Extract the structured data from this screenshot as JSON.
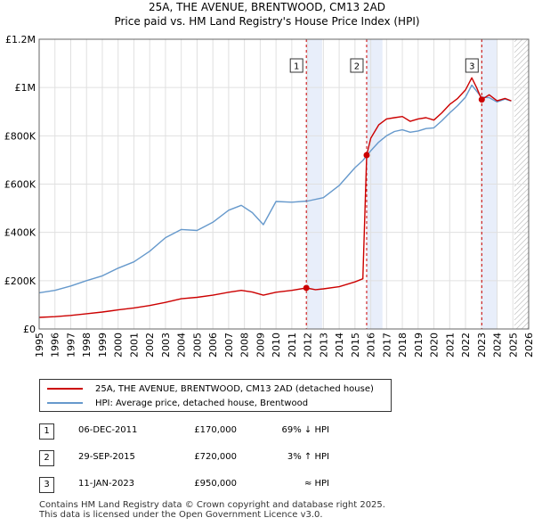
{
  "header": {
    "title": "25A, THE AVENUE, BRENTWOOD, CM13 2AD",
    "subtitle": "Price paid vs. HM Land Registry's House Price Index (HPI)"
  },
  "colors": {
    "red": "#cc0000",
    "blue": "#6699cc",
    "grid": "#e0e0e0",
    "shade": "#e8eefa",
    "dash": "#cc0000"
  },
  "chart_data": {
    "type": "line",
    "title": "Price paid vs. HM Land Registry's House Price Index (HPI)",
    "xlim": [
      1995,
      2026
    ],
    "ylim": [
      0,
      1200000
    ],
    "x_ticks": [
      "1995",
      "1996",
      "1997",
      "1998",
      "1999",
      "2000",
      "2001",
      "2002",
      "2003",
      "2004",
      "2005",
      "2006",
      "2007",
      "2008",
      "2009",
      "2010",
      "2011",
      "2012",
      "2013",
      "2014",
      "2015",
      "2016",
      "2017",
      "2018",
      "2019",
      "2020",
      "2021",
      "2022",
      "2023",
      "2024",
      "2025",
      "2026"
    ],
    "y_ticks": [
      {
        "value": 0,
        "label": "£0"
      },
      {
        "value": 200000,
        "label": "£200K"
      },
      {
        "value": 400000,
        "label": "£400K"
      },
      {
        "value": 600000,
        "label": "£600K"
      },
      {
        "value": 800000,
        "label": "£800K"
      },
      {
        "value": 1000000,
        "label": "£1M"
      },
      {
        "value": 1200000,
        "label": "£1.2M"
      }
    ],
    "future_shade_from": 2025.1,
    "series": [
      {
        "name": "25A, THE AVENUE, BRENTWOOD, CM13 2AD (detached house)",
        "color": "#cc0000",
        "x": [
          1995.0,
          1996.0,
          1997.0,
          1998.0,
          1999.0,
          2000.0,
          2001.0,
          2002.0,
          2003.0,
          2004.0,
          2005.0,
          2006.0,
          2007.0,
          2007.8,
          2008.5,
          2009.2,
          2010.0,
          2011.0,
          2011.92,
          2012.5,
          2013.0,
          2014.0,
          2015.0,
          2015.5,
          2015.74,
          2016.0,
          2016.5,
          2017.0,
          2017.5,
          2018.0,
          2018.5,
          2019.0,
          2019.5,
          2020.0,
          2020.5,
          2021.0,
          2021.5,
          2022.0,
          2022.4,
          2022.7,
          2023.03,
          2023.5,
          2024.0,
          2024.5,
          2024.9
        ],
        "values": [
          48000,
          51000,
          56000,
          63000,
          70000,
          79000,
          87000,
          97000,
          110000,
          125000,
          131000,
          140000,
          152000,
          160000,
          153000,
          140000,
          152000,
          160000,
          170000,
          163000,
          166000,
          175000,
          195000,
          208000,
          720000,
          790000,
          845000,
          870000,
          875000,
          880000,
          860000,
          870000,
          875000,
          865000,
          895000,
          930000,
          955000,
          990000,
          1040000,
          1000000,
          950000,
          970000,
          945000,
          955000,
          945000
        ]
      },
      {
        "name": "HPI: Average price, detached house, Brentwood",
        "color": "#6699cc",
        "x": [
          1995.0,
          1996.0,
          1997.0,
          1998.0,
          1999.0,
          2000.0,
          2001.0,
          2002.0,
          2003.0,
          2004.0,
          2005.0,
          2006.0,
          2007.0,
          2007.8,
          2008.5,
          2009.2,
          2010.0,
          2011.0,
          2012.0,
          2013.0,
          2014.0,
          2015.0,
          2015.5,
          2016.0,
          2016.5,
          2017.0,
          2017.5,
          2018.0,
          2018.5,
          2019.0,
          2019.5,
          2020.0,
          2020.5,
          2021.0,
          2021.5,
          2022.0,
          2022.4,
          2022.7,
          2023.0,
          2023.5,
          2024.0,
          2024.5,
          2024.9
        ],
        "values": [
          150000,
          160000,
          178000,
          200000,
          220000,
          252000,
          278000,
          322000,
          378000,
          412000,
          408000,
          442000,
          492000,
          512000,
          482000,
          432000,
          528000,
          525000,
          530000,
          544000,
          594000,
          668000,
          698000,
          738000,
          774000,
          800000,
          818000,
          825000,
          815000,
          820000,
          830000,
          833000,
          862000,
          895000,
          925000,
          960000,
          1010000,
          985000,
          960000,
          958000,
          940000,
          952000,
          944000
        ]
      }
    ],
    "markers": [
      {
        "label": "1",
        "x": 2011.92,
        "y": 170000
      },
      {
        "label": "2",
        "x": 2015.74,
        "y": 720000
      },
      {
        "label": "3",
        "x": 2023.03,
        "y": 950000
      }
    ],
    "legend_position": "bottom"
  },
  "legend": {
    "items": [
      {
        "label": "25A, THE AVENUE, BRENTWOOD, CM13 2AD (detached house)",
        "color": "#cc0000"
      },
      {
        "label": "HPI: Average price, detached house, Brentwood",
        "color": "#6699cc"
      }
    ]
  },
  "transactions": [
    {
      "num": "1",
      "date": "06-DEC-2011",
      "price": "£170,000",
      "hpi": "69% ↓ HPI"
    },
    {
      "num": "2",
      "date": "29-SEP-2015",
      "price": "£720,000",
      "hpi": "3% ↑ HPI"
    },
    {
      "num": "3",
      "date": "11-JAN-2023",
      "price": "£950,000",
      "hpi": "≈ HPI"
    }
  ],
  "footer": {
    "line1": "Contains HM Land Registry data © Crown copyright and database right 2025.",
    "line2": "This data is licensed under the Open Government Licence v3.0."
  }
}
